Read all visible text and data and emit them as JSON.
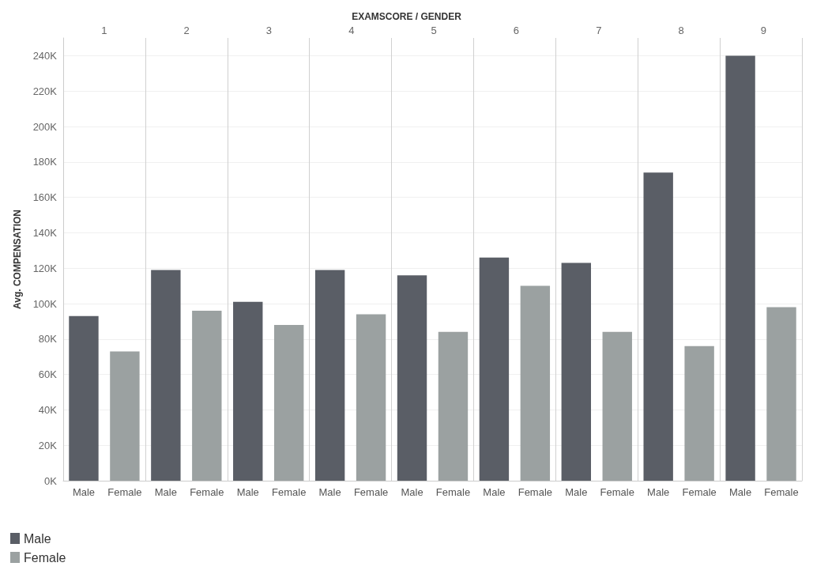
{
  "chart_data": {
    "type": "bar",
    "title": "EXAMSCORE / GENDER",
    "ylabel": "Avg. COMPENSATION",
    "categories": [
      "Male",
      "Female",
      "Male",
      "Female",
      "Male",
      "Female",
      "Male",
      "Female",
      "Male",
      "Female",
      "Male",
      "Female",
      "Male",
      "Female",
      "Male",
      "Female",
      "Male",
      "Female"
    ],
    "annotations": [
      "1",
      "2",
      "3",
      "4",
      "5",
      "6",
      "7",
      "8",
      "9"
    ],
    "series": [
      {
        "name": "Male",
        "color": "#5a5e66",
        "values": [
          93000,
          null,
          119000,
          null,
          101000,
          null,
          119000,
          null,
          116000,
          null,
          126000,
          null,
          123000,
          null,
          174000,
          null,
          240000,
          null
        ]
      },
      {
        "name": "Female",
        "color": "#9ba1a1",
        "values": [
          null,
          73000,
          null,
          96000,
          null,
          88000,
          null,
          94000,
          null,
          84000,
          null,
          110000,
          null,
          84000,
          null,
          76000,
          null,
          98000
        ]
      }
    ],
    "ylim": [
      0,
      250000
    ],
    "yticks": [
      {
        "value": 0,
        "label": "0K"
      },
      {
        "value": 20000,
        "label": "20K"
      },
      {
        "value": 40000,
        "label": "40K"
      },
      {
        "value": 60000,
        "label": "60K"
      },
      {
        "value": 80000,
        "label": "80K"
      },
      {
        "value": 100000,
        "label": "100K"
      },
      {
        "value": 120000,
        "label": "120K"
      },
      {
        "value": 140000,
        "label": "140K"
      },
      {
        "value": 160000,
        "label": "160K"
      },
      {
        "value": 180000,
        "label": "180K"
      },
      {
        "value": 200000,
        "label": "200K"
      },
      {
        "value": 220000,
        "label": "220K"
      },
      {
        "value": 240000,
        "label": "240K"
      }
    ],
    "grid": "y",
    "legend": "bottom left"
  }
}
